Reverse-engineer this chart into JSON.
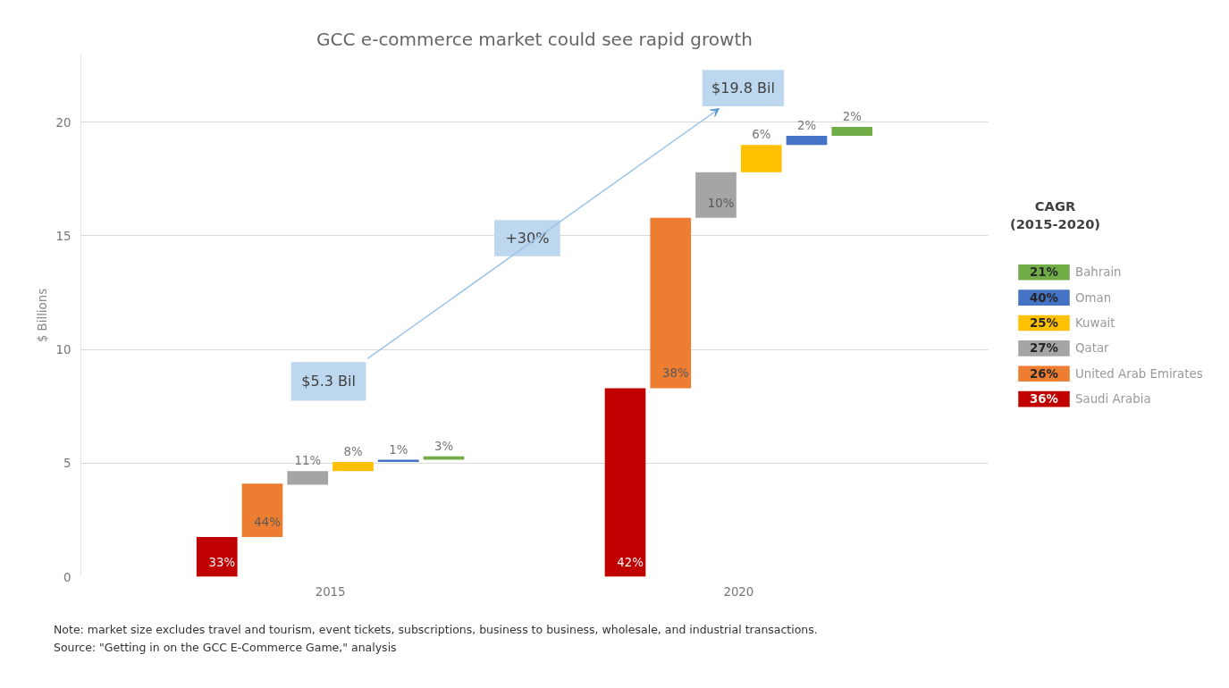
{
  "chart_data": {
    "type": "bar",
    "title": "GCC e-commerce market could see rapid growth",
    "ylabel": "$ Billions",
    "legend_title": "CAGR\n(2015-2020)",
    "legend": "right",
    "grid": "y",
    "categories": [
      "2015",
      "2020"
    ],
    "ylim": [
      0,
      23
    ],
    "yticks": [
      0,
      5,
      10,
      15,
      20
    ],
    "series": [
      {
        "name": "Saudi Arabia",
        "color": "#c00000",
        "base": [
          0,
          0
        ],
        "values": [
          1.75,
          8.3
        ]
      },
      {
        "name": "United Arab Emirates",
        "color": "#ed7d31",
        "base": [
          1.75,
          8.3
        ],
        "values": [
          2.35,
          7.5
        ]
      },
      {
        "name": "Qatar",
        "color": "#a5a5a5",
        "base": [
          4.05,
          15.8
        ],
        "values": [
          0.6,
          2.0
        ]
      },
      {
        "name": "Kuwait",
        "color": "#ffc000",
        "base": [
          4.65,
          17.8
        ],
        "values": [
          0.4,
          1.2
        ]
      },
      {
        "name": "Oman",
        "color": "#4472c4",
        "base": [
          5.05,
          19.0
        ],
        "values": [
          0.1,
          0.4
        ]
      },
      {
        "name": "Bahrain",
        "color": "#70ad47",
        "base": [
          5.15,
          19.4
        ],
        "values": [
          0.15,
          0.4
        ]
      }
    ],
    "annotations": [
      "$5.3 Bil",
      "+30%",
      "$19.8 Bil",
      "Note: market size excludes travel and tourism, event tickets, subscriptions, business to business, wholesale, and industrial transactions.",
      "Source: \"Getting in on the GCC E-Commerce Game,\" analysis",
      "36%",
      "26%",
      "27%",
      "25%",
      "40%",
      "21%",
      "33%",
      "42%",
      "44%",
      "38%",
      "11%",
      "10%",
      "8%",
      "6%",
      "1%",
      "2%",
      "3%",
      "2%"
    ]
  }
}
